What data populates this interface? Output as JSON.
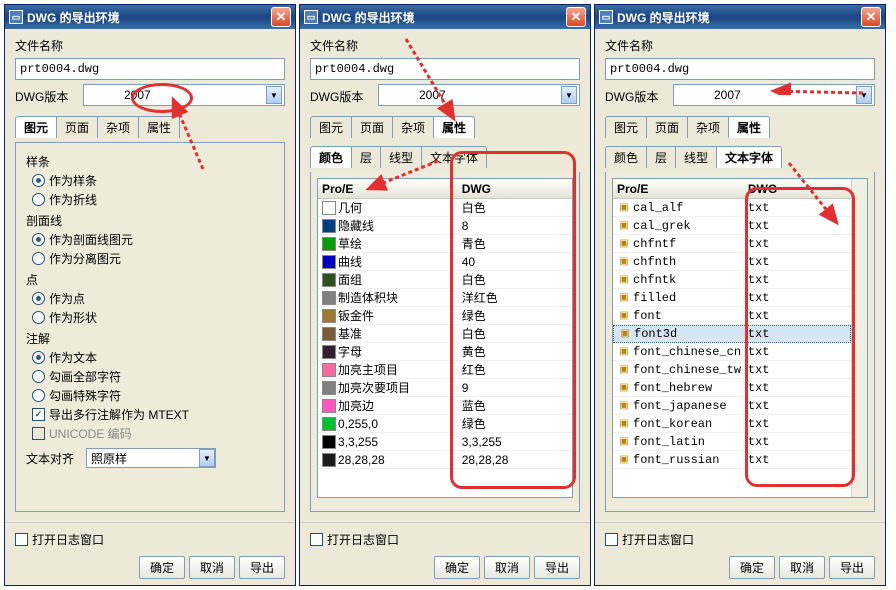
{
  "window_title": "DWG 的导出环境",
  "filename_label": "文件名称",
  "filename_value": "prt0004.dwg",
  "version_label": "DWG版本",
  "version_value": "2007",
  "main_tabs": [
    "图元",
    "页面",
    "杂项",
    "属性"
  ],
  "sub_tabs": [
    "颜色",
    "层",
    "线型",
    "文本字体"
  ],
  "panel1": {
    "active_tab": 0,
    "g1_label": "样条",
    "g1_opts": [
      "作为样条",
      "作为折线"
    ],
    "g1_sel": 0,
    "g2_label": "剖面线",
    "g2_opts": [
      "作为剖面线图元",
      "作为分离图元"
    ],
    "g2_sel": 0,
    "g3_label": "点",
    "g3_opts": [
      "作为点",
      "作为形状"
    ],
    "g3_sel": 0,
    "g4_label": "注解",
    "g4_opts": [
      "作为文本",
      "勾画全部字符",
      "勾画特殊字符"
    ],
    "g4_sel": 0,
    "chk_mtext": "导出多行注解作为 MTEXT",
    "chk_unicode": "UNICODE 编码",
    "align_label": "文本对齐",
    "align_value": "照原样"
  },
  "panel2": {
    "active_tab": 3,
    "active_subtab": 0,
    "col1": "Pro/E",
    "col2": "DWG",
    "rows": [
      {
        "color": "#ffffff",
        "name": "几何",
        "val": "白色"
      },
      {
        "color": "#004080",
        "name": "隐藏线",
        "val": "8"
      },
      {
        "color": "#00a000",
        "name": "草绘",
        "val": "青色"
      },
      {
        "color": "#0000c0",
        "name": "曲线",
        "val": "40"
      },
      {
        "color": "#305020",
        "name": "面组",
        "val": "白色"
      },
      {
        "color": "#808080",
        "name": "制造体积块",
        "val": "洋红色"
      },
      {
        "color": "#a07830",
        "name": "钣金件",
        "val": "绿色"
      },
      {
        "color": "#7a5c36",
        "name": "基准",
        "val": "白色"
      },
      {
        "color": "#302030",
        "name": "字母",
        "val": "黄色"
      },
      {
        "color": "#fa6aa0",
        "name": "加亮主项目",
        "val": "红色"
      },
      {
        "color": "#808080",
        "name": "加亮次要项目",
        "val": "9"
      },
      {
        "color": "#ff55c0",
        "name": "加亮边",
        "val": "蓝色"
      },
      {
        "color": "#00c030",
        "name": "0,255,0",
        "val": "绿色"
      },
      {
        "color": "#030303",
        "name": "3,3,255",
        "val": "3,3,255"
      },
      {
        "color": "#1c1c1c",
        "name": "28,28,28",
        "val": "28,28,28"
      }
    ]
  },
  "panel3": {
    "active_tab": 3,
    "active_subtab": 3,
    "col1": "Pro/E",
    "col2": "DWG",
    "selected": 7,
    "rows": [
      {
        "name": "cal_alf",
        "val": "txt"
      },
      {
        "name": "cal_grek",
        "val": "txt"
      },
      {
        "name": "chfntf",
        "val": "txt"
      },
      {
        "name": "chfnth",
        "val": "txt"
      },
      {
        "name": "chfntk",
        "val": "txt"
      },
      {
        "name": "filled",
        "val": "txt"
      },
      {
        "name": "font",
        "val": "txt"
      },
      {
        "name": "font3d",
        "val": "txt"
      },
      {
        "name": "font_chinese_cn",
        "val": "txt"
      },
      {
        "name": "font_chinese_tw",
        "val": "txt"
      },
      {
        "name": "font_hebrew",
        "val": "txt"
      },
      {
        "name": "font_japanese",
        "val": "txt"
      },
      {
        "name": "font_korean",
        "val": "txt"
      },
      {
        "name": "font_latin",
        "val": "txt"
      },
      {
        "name": "font_russian",
        "val": "txt"
      }
    ]
  },
  "log_checkbox": "打开日志窗口",
  "btn_ok": "确定",
  "btn_cancel": "取消",
  "btn_export": "导出"
}
